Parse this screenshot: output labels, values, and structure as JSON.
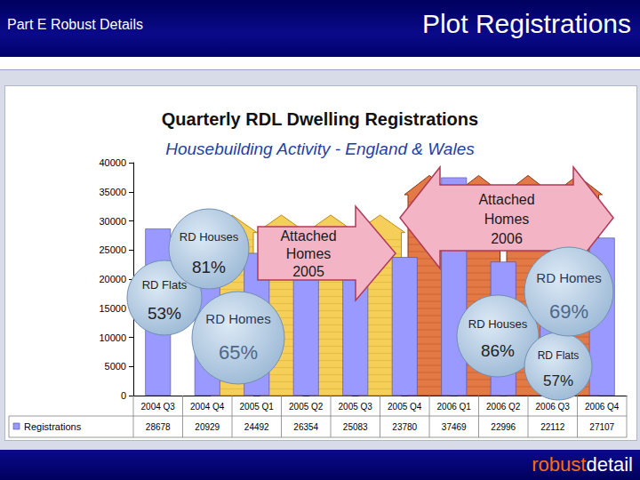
{
  "header": {
    "left": "Part E Robust Details",
    "right": "Plot Registrations"
  },
  "footer": {
    "logo": [
      "robust",
      "detail"
    ]
  },
  "chart_data": {
    "type": "bar",
    "title": "Quarterly RDL Dwelling Registrations",
    "subtitle": "Housebuilding Activity - England & Wales",
    "categories": [
      "2004 Q3",
      "2004 Q4",
      "2005 Q1",
      "2005 Q2",
      "2005 Q3",
      "2005 Q4",
      "2006 Q1",
      "2006 Q2",
      "2006 Q3",
      "2006 Q4"
    ],
    "series": [
      {
        "name": "Registrations",
        "color": "#9999ff",
        "values": [
          28678,
          20929,
          24492,
          26354,
          25083,
          23780,
          37469,
          22996,
          22112,
          27107
        ]
      }
    ],
    "ylim": [
      0,
      40000
    ],
    "yticks": [
      0,
      5000,
      10000,
      15000,
      20000,
      25000,
      30000,
      35000,
      40000
    ],
    "grid": false,
    "data_labels": false,
    "annotations": [
      {
        "lines": [
          "RD Flats",
          "53%"
        ]
      },
      {
        "lines": [
          "RD Houses",
          "81%"
        ]
      },
      {
        "lines": [
          "RD Homes",
          "65%"
        ]
      },
      {
        "lines": [
          "Attached",
          "Homes",
          "2005"
        ]
      },
      {
        "lines": [
          "Attached",
          "Homes",
          "2006"
        ]
      },
      {
        "lines": [
          "RD Homes",
          "69%"
        ]
      },
      {
        "lines": [
          "RD Houses",
          "86%"
        ]
      },
      {
        "lines": [
          "RD Flats",
          "57%"
        ]
      }
    ]
  }
}
